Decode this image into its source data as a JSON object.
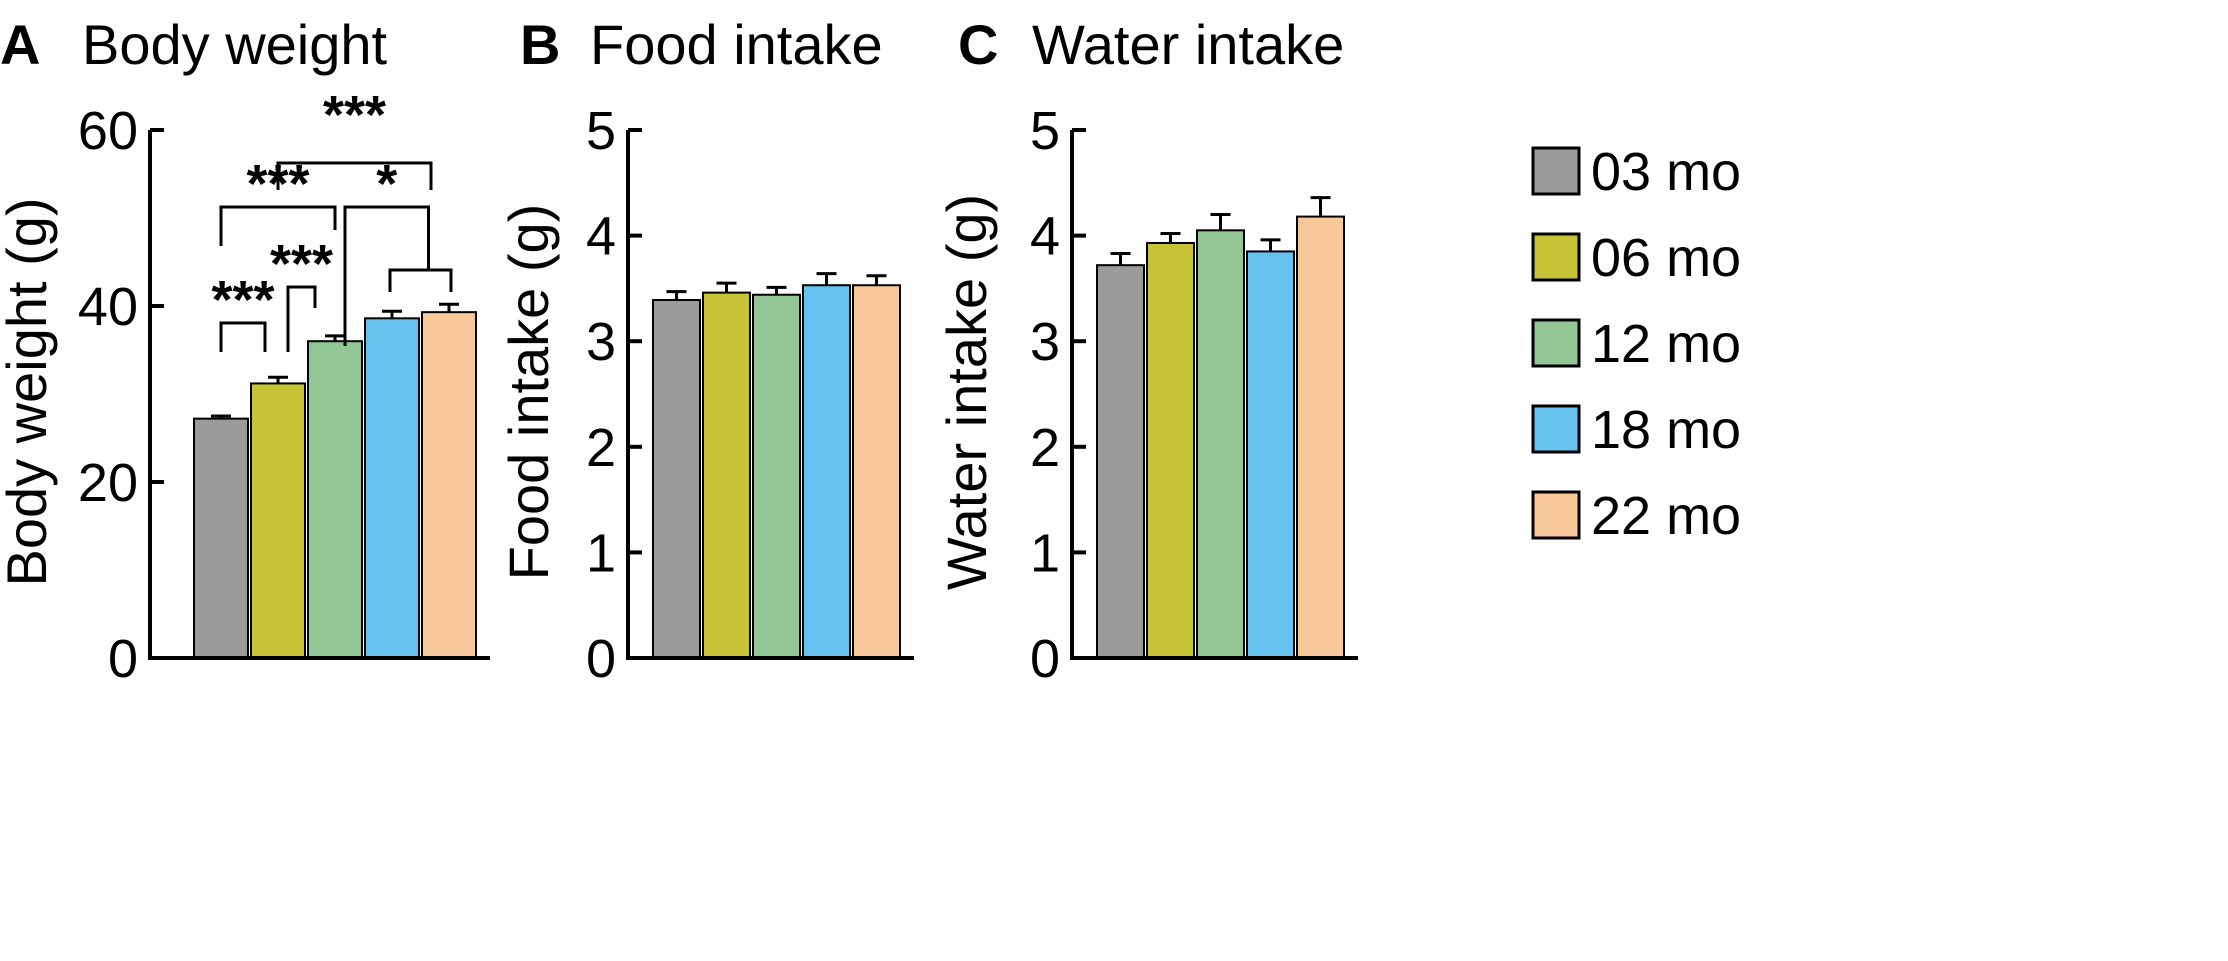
{
  "legend": [
    {
      "label": "03 mo",
      "color": "#9b9b9b"
    },
    {
      "label": "06 mo",
      "color": "#c6c337"
    },
    {
      "label": "12 mo",
      "color": "#92c694"
    },
    {
      "label": "18 mo",
      "color": "#66c2ee"
    },
    {
      "label": "22 mo",
      "color": "#f8c79a"
    }
  ],
  "chart_data": [
    {
      "type": "bar",
      "panel": "A",
      "title": "Body weight",
      "ylabel": "Body weight (g)",
      "xlabel": "",
      "ylim": [
        0,
        60
      ],
      "yticks": [
        0,
        20,
        40,
        60
      ],
      "categories": [
        "03 mo",
        "06 mo",
        "12 mo",
        "18 mo",
        "22 mo"
      ],
      "values": [
        27.2,
        31.2,
        36.0,
        38.6,
        39.3
      ],
      "errors": [
        0.3,
        0.7,
        0.6,
        0.8,
        0.9
      ],
      "significance": [
        {
          "from": 0,
          "to": 1,
          "label": "***"
        },
        {
          "from": 1,
          "to": 2,
          "label": "***"
        },
        {
          "from": 0,
          "to": 2,
          "label": "***"
        },
        {
          "from": 2,
          "to": "3-4",
          "label": "*"
        },
        {
          "from": 1,
          "to": 4,
          "label": "***"
        }
      ]
    },
    {
      "type": "bar",
      "panel": "B",
      "title": "Food intake",
      "ylabel": "Food intake (g)",
      "xlabel": "",
      "ylim": [
        0,
        5
      ],
      "yticks": [
        0,
        1,
        2,
        3,
        4,
        5
      ],
      "categories": [
        "03 mo",
        "06 mo",
        "12 mo",
        "18 mo",
        "22 mo"
      ],
      "values": [
        3.39,
        3.46,
        3.44,
        3.53,
        3.53
      ],
      "errors": [
        0.08,
        0.09,
        0.07,
        0.11,
        0.09
      ]
    },
    {
      "type": "bar",
      "panel": "C",
      "title": "Water intake",
      "ylabel": "Water intake (g)",
      "xlabel": "",
      "ylim": [
        0,
        5
      ],
      "yticks": [
        0,
        1,
        2,
        3,
        4,
        5
      ],
      "categories": [
        "03 mo",
        "06 mo",
        "12 mo",
        "18 mo",
        "22 mo"
      ],
      "values": [
        3.72,
        3.93,
        4.05,
        3.85,
        4.18
      ],
      "errors": [
        0.11,
        0.09,
        0.15,
        0.11,
        0.18
      ]
    }
  ]
}
